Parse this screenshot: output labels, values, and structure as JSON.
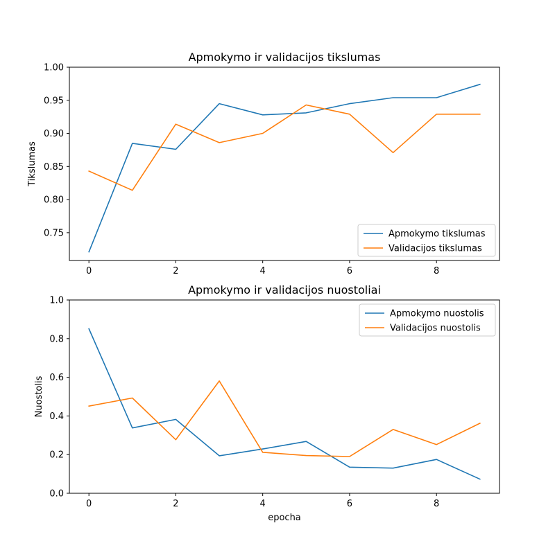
{
  "colors": {
    "series1": "#1f77b4",
    "series2": "#ff7f0e",
    "axis": "#000000",
    "legend_edge": "#cccccc"
  },
  "chart_data": [
    {
      "type": "line",
      "title": "Apmokymo ir validacijos tikslumas",
      "xlabel": "",
      "ylabel": "Tikslumas",
      "x": [
        0,
        1,
        2,
        3,
        4,
        5,
        6,
        7,
        8,
        9
      ],
      "xlim": [
        -0.45,
        9.45
      ],
      "ylim": [
        0.708,
        1.0
      ],
      "xticks": [
        0,
        2,
        4,
        6,
        8
      ],
      "xtick_labels": [
        "0",
        "2",
        "4",
        "6",
        "8"
      ],
      "yticks": [
        0.75,
        0.8,
        0.85,
        0.9,
        0.95,
        1.0
      ],
      "ytick_labels": [
        "0.75",
        "0.80",
        "0.85",
        "0.90",
        "0.95",
        "1.00"
      ],
      "grid": false,
      "legend_position": "lower right",
      "series": [
        {
          "name": "Apmokymo tikslumas",
          "values": [
            0.721,
            0.885,
            0.876,
            0.945,
            0.928,
            0.931,
            0.945,
            0.954,
            0.954,
            0.974
          ]
        },
        {
          "name": "Validacijos tikslumas",
          "values": [
            0.843,
            0.814,
            0.914,
            0.886,
            0.9,
            0.943,
            0.929,
            0.871,
            0.929,
            0.929
          ]
        }
      ]
    },
    {
      "type": "line",
      "title": "Apmokymo ir validacijos nuostoliai",
      "xlabel": "epocha",
      "ylabel": "Nuostolis",
      "x": [
        0,
        1,
        2,
        3,
        4,
        5,
        6,
        7,
        8,
        9
      ],
      "xlim": [
        -0.45,
        9.45
      ],
      "ylim": [
        0.0,
        1.0
      ],
      "xticks": [
        0,
        2,
        4,
        6,
        8
      ],
      "xtick_labels": [
        "0",
        "2",
        "4",
        "6",
        "8"
      ],
      "yticks": [
        0.0,
        0.2,
        0.4,
        0.6,
        0.8,
        1.0
      ],
      "ytick_labels": [
        "0.0",
        "0.2",
        "0.4",
        "0.6",
        "0.8",
        "1.0"
      ],
      "grid": false,
      "legend_position": "upper right",
      "series": [
        {
          "name": "Apmokymo nuostolis",
          "values": [
            0.851,
            0.338,
            0.382,
            0.194,
            0.229,
            0.268,
            0.135,
            0.13,
            0.175,
            0.073
          ]
        },
        {
          "name": "Validacijos nuostolis",
          "values": [
            0.451,
            0.493,
            0.277,
            0.581,
            0.212,
            0.195,
            0.19,
            0.33,
            0.252,
            0.362
          ]
        }
      ]
    }
  ]
}
